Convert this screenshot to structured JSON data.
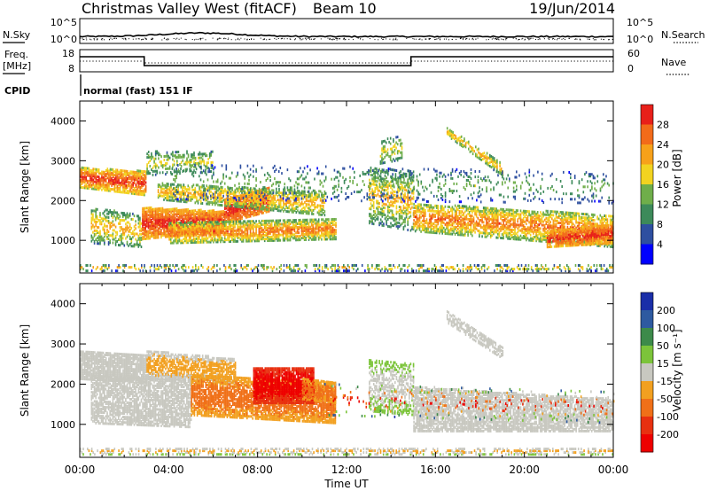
{
  "header": {
    "station": "Christmas Valley West (fitACF)",
    "beam": "Beam 10",
    "date": "19/Jun/2014"
  },
  "noise_panel": {
    "left_label": "N.Sky",
    "right_label": "N.Search",
    "left_ticks": [
      "10^5",
      "10^0"
    ],
    "right_ticks": [
      "10^5",
      "10^0"
    ]
  },
  "freq_panel": {
    "left_label_line1": "Freq.",
    "left_label_line2": "[MHz]",
    "right_label": "Nave",
    "left_ticks": [
      "18",
      "8"
    ],
    "right_ticks": [
      "60",
      "0"
    ]
  },
  "cpid": {
    "label": "CPID",
    "program": "normal (fast) 151 IF"
  },
  "colors": {
    "power_scale": [
      "#0000ff",
      "#2e4fa0",
      "#3d8a5a",
      "#6fae4a",
      "#f2d320",
      "#f7a11a",
      "#f26b1a",
      "#e8201a"
    ],
    "velocity_scale": [
      "#1a2ea8",
      "#2e5aa0",
      "#3d8a4a",
      "#7cc43a",
      "#c8c8c0",
      "#f2a020",
      "#f07018",
      "#e83010",
      "#ee0000"
    ]
  },
  "chart_data": [
    {
      "type": "heatmap",
      "name": "power-panel",
      "ylabel": "Slant Range [km]",
      "y_ticks": [
        1000,
        2000,
        3000,
        4000
      ],
      "ylim": [
        180,
        4500
      ],
      "xlim_hours": [
        0,
        24
      ],
      "colorbar": {
        "label": "Power [dB]",
        "ticks": [
          "4",
          "8",
          "12",
          "16",
          "20",
          "24",
          "28"
        ],
        "range": [
          0,
          32
        ]
      }
    },
    {
      "type": "heatmap",
      "name": "velocity-panel",
      "ylabel": "Slant Range [km]",
      "y_ticks": [
        1000,
        2000,
        3000,
        4000
      ],
      "ylim": [
        180,
        4500
      ],
      "xlim_hours": [
        0,
        24
      ],
      "xlabel": "Time UT",
      "x_tick_labels": [
        "00:00",
        "04:00",
        "08:00",
        "12:00",
        "16:00",
        "20:00",
        "00:00"
      ],
      "colorbar": {
        "label": "Velocity [m s⁻¹]",
        "ticks": [
          "200",
          "100",
          "50",
          "15",
          "-15",
          "-50",
          "-100",
          "-200"
        ]
      }
    }
  ]
}
